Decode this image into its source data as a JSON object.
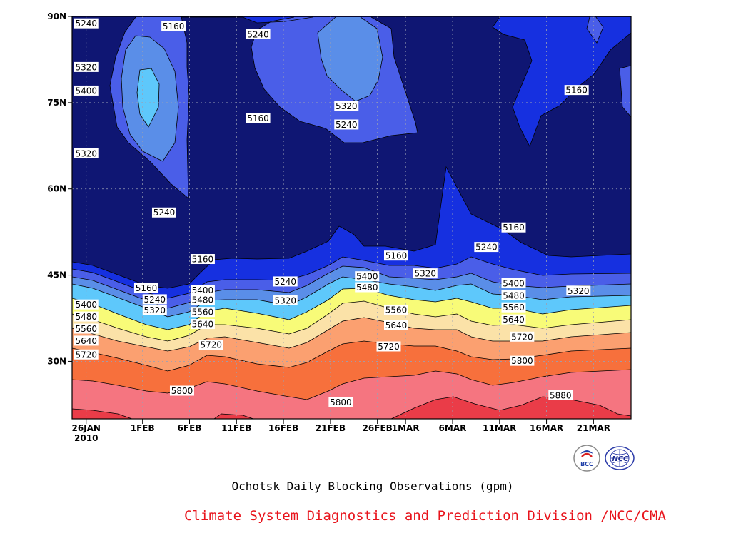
{
  "chart_data": {
    "type": "contour",
    "x_ticks": [
      "26JAN",
      "1FEB",
      "6FEB",
      "11FEB",
      "16FEB",
      "21FEB",
      "26FEB",
      "1MAR",
      "6MAR",
      "11MAR",
      "16MAR",
      "21MAR"
    ],
    "x_year_label": "2010",
    "x_tick_days": [
      0,
      6,
      11,
      16,
      21,
      26,
      31,
      34,
      39,
      44,
      49,
      54
    ],
    "xlim_days": [
      -1.5,
      58
    ],
    "y_ticks": [
      "30N",
      "45N",
      "60N",
      "75N",
      "90N"
    ],
    "y_tick_values": [
      30,
      45,
      60,
      75,
      90
    ],
    "ylim": [
      20,
      90
    ],
    "grid": true,
    "contour_levels": [
      5160,
      5240,
      5320,
      5400,
      5480,
      5560,
      5640,
      5720,
      5800,
      5880
    ],
    "fill_colors": [
      "#0f1673",
      "#1630e0",
      "#4a5ee8",
      "#5a8ee8",
      "#5ec8fb",
      "#f8fb78",
      "#fbe2a8",
      "#fba070",
      "#f7703c",
      "#f57580",
      "#ea3c48"
    ],
    "contour_labels": [
      {
        "day": 0,
        "lat": 88.8,
        "text": "5240"
      },
      {
        "day": 0,
        "lat": 81.2,
        "text": "5320"
      },
      {
        "day": 0,
        "lat": 77.1,
        "text": "5400"
      },
      {
        "day": 0,
        "lat": 66.2,
        "text": "5320"
      },
      {
        "day": 8.3,
        "lat": 55.9,
        "text": "5240"
      },
      {
        "day": 9.3,
        "lat": 88.3,
        "text": "5160"
      },
      {
        "day": 18.3,
        "lat": 86.9,
        "text": "5240"
      },
      {
        "day": 18.3,
        "lat": 72.3,
        "text": "5160"
      },
      {
        "day": 27.7,
        "lat": 74.4,
        "text": "5320"
      },
      {
        "day": 27.7,
        "lat": 71.2,
        "text": "5240"
      },
      {
        "day": 52.2,
        "lat": 77.2,
        "text": "5160"
      },
      {
        "day": 12.4,
        "lat": 47.8,
        "text": "5160"
      },
      {
        "day": 6.4,
        "lat": 42.8,
        "text": "5160"
      },
      {
        "day": 7.3,
        "lat": 40.8,
        "text": "5240"
      },
      {
        "day": 7.3,
        "lat": 38.9,
        "text": "5320"
      },
      {
        "day": 12.4,
        "lat": 42.4,
        "text": "5400"
      },
      {
        "day": 12.4,
        "lat": 40.7,
        "text": "5480"
      },
      {
        "day": 12.4,
        "lat": 38.6,
        "text": "5560"
      },
      {
        "day": 12.4,
        "lat": 36.5,
        "text": "5640"
      },
      {
        "day": 13.3,
        "lat": 32.9,
        "text": "5720"
      },
      {
        "day": 0,
        "lat": 39.9,
        "text": "5400"
      },
      {
        "day": 0,
        "lat": 37.8,
        "text": "5480"
      },
      {
        "day": 0,
        "lat": 35.7,
        "text": "5560"
      },
      {
        "day": 0,
        "lat": 33.6,
        "text": "5640"
      },
      {
        "day": 0,
        "lat": 31.2,
        "text": "5720"
      },
      {
        "day": 10.2,
        "lat": 24.9,
        "text": "5800"
      },
      {
        "day": 21.2,
        "lat": 43.9,
        "text": "5240"
      },
      {
        "day": 21.2,
        "lat": 40.6,
        "text": "5320"
      },
      {
        "day": 29.9,
        "lat": 44.8,
        "text": "5400"
      },
      {
        "day": 29.9,
        "lat": 42.9,
        "text": "5480"
      },
      {
        "day": 33,
        "lat": 48.4,
        "text": "5160"
      },
      {
        "day": 36.1,
        "lat": 45.3,
        "text": "5320"
      },
      {
        "day": 33,
        "lat": 39,
        "text": "5560"
      },
      {
        "day": 33,
        "lat": 36.3,
        "text": "5640"
      },
      {
        "day": 32.2,
        "lat": 32.6,
        "text": "5720"
      },
      {
        "day": 27.1,
        "lat": 22.9,
        "text": "5800"
      },
      {
        "day": 42.6,
        "lat": 49.9,
        "text": "5240"
      },
      {
        "day": 45.5,
        "lat": 53.3,
        "text": "5160"
      },
      {
        "day": 45.5,
        "lat": 43.6,
        "text": "5400"
      },
      {
        "day": 45.5,
        "lat": 41.5,
        "text": "5480"
      },
      {
        "day": 45.5,
        "lat": 39.4,
        "text": "5560"
      },
      {
        "day": 45.5,
        "lat": 37.3,
        "text": "5640"
      },
      {
        "day": 46.4,
        "lat": 34.3,
        "text": "5720"
      },
      {
        "day": 46.4,
        "lat": 30.1,
        "text": "5800"
      },
      {
        "day": 52.4,
        "lat": 42.3,
        "text": "5320"
      },
      {
        "day": 50.5,
        "lat": 24.1,
        "text": "5880"
      }
    ]
  },
  "footer": {
    "title": "Ochotsk Daily Blocking Observations (gpm)",
    "credit": "Climate System Diagnostics and Prediction Division /NCC/CMA"
  },
  "logos": {
    "left_text": "BCC",
    "right_text": "NCC"
  }
}
